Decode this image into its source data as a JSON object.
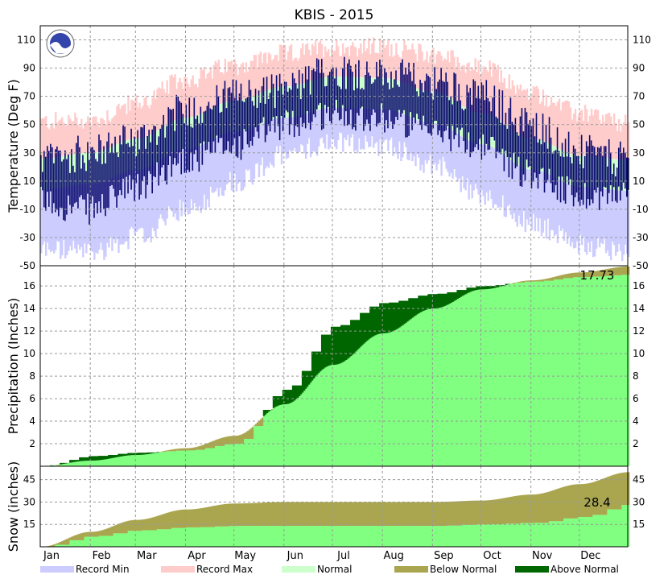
{
  "title": "KBIS - 2015",
  "months": [
    "Jan",
    "Feb",
    "Mar",
    "Apr",
    "May",
    "Jun",
    "Jul",
    "Aug",
    "Sep",
    "Oct",
    "Nov",
    "Dec"
  ],
  "legend": [
    {
      "label": "Record Min",
      "color": "#ccccff"
    },
    {
      "label": "Record Max",
      "color": "#ffcccc"
    },
    {
      "label": "Normal",
      "color": "#ccffcc"
    },
    {
      "label": "Below Normal",
      "color": "#aaa650"
    },
    {
      "label": "Above Normal",
      "color": "#006600"
    }
  ],
  "colors": {
    "record_min": "#ccccff",
    "record_max": "#ffcccc",
    "normal": "#ccffcc",
    "observed_temp": "#0a0a6e",
    "normal_precip": "#80ff80",
    "below_normal": "#aaa650",
    "above_normal": "#006600"
  },
  "chart_data": [
    {
      "type": "area",
      "panel": "temperature",
      "ylabel": "Temperature (Deg F)",
      "ylim": [
        -50,
        120
      ],
      "yticks": [
        110,
        90,
        70,
        50,
        30,
        10,
        -10,
        -30,
        -50
      ],
      "x": [
        "Jan 1",
        "Feb 1",
        "Mar 1",
        "Apr 1",
        "May 1",
        "Jun 1",
        "Jul 1",
        "Aug 1",
        "Sep 1",
        "Oct 1",
        "Nov 1",
        "Dec 1",
        "Dec 31"
      ],
      "series": [
        {
          "name": "Record Max",
          "values": [
            52,
            53,
            65,
            82,
            92,
            100,
            105,
            105,
            100,
            90,
            72,
            58,
            50
          ]
        },
        {
          "name": "Normal",
          "values": [
            26,
            30,
            40,
            55,
            67,
            77,
            84,
            83,
            73,
            58,
            40,
            28,
            25
          ]
        },
        {
          "name": "Record Min",
          "values": [
            -38,
            -40,
            -30,
            -10,
            10,
            28,
            38,
            35,
            22,
            0,
            -20,
            -35,
            -40
          ]
        },
        {
          "name": "Observed High",
          "values": [
            25,
            30,
            40,
            60,
            70,
            75,
            88,
            85,
            80,
            70,
            50,
            30,
            25
          ]
        },
        {
          "name": "Observed Low",
          "values": [
            -5,
            -10,
            5,
            25,
            35,
            50,
            58,
            55,
            45,
            35,
            15,
            0,
            0
          ]
        }
      ],
      "grid": true
    },
    {
      "type": "area",
      "panel": "precipitation",
      "ylabel": "Precipitation (Inches)",
      "ylim": [
        0,
        17.8
      ],
      "yticks": [
        16,
        14,
        12,
        10,
        8,
        6,
        4,
        2
      ],
      "x": [
        "Jan 1",
        "Feb 1",
        "Mar 1",
        "Apr 1",
        "May 1",
        "Jun 1",
        "Jul 1",
        "Aug 1",
        "Sep 1",
        "Oct 1",
        "Nov 1",
        "Dec 1",
        "Dec 31"
      ],
      "series": [
        {
          "name": "Normal",
          "values": [
            0,
            0.5,
            1.0,
            1.6,
            2.7,
            5.5,
            9.0,
            11.8,
            14.0,
            15.7,
            16.5,
            17.2,
            17.73
          ]
        },
        {
          "name": "Observed",
          "values": [
            0,
            0.9,
            1.2,
            1.4,
            2.0,
            6.8,
            12.4,
            14.5,
            15.3,
            16.0,
            16.4,
            16.8,
            17.0
          ]
        }
      ],
      "annotation": "17.73",
      "grid": true
    },
    {
      "type": "area",
      "panel": "snow",
      "ylabel": "Snow (inches)",
      "ylim": [
        0,
        54
      ],
      "yticks": [
        45,
        30,
        15
      ],
      "x": [
        "Jan 1",
        "Feb 1",
        "Mar 1",
        "Apr 1",
        "May 1",
        "Jun 1",
        "Jul 1",
        "Aug 1",
        "Sep 1",
        "Oct 1",
        "Nov 1",
        "Dec 1",
        "Dec 31"
      ],
      "series": [
        {
          "name": "Normal",
          "values": [
            0,
            10,
            18,
            25,
            29,
            30,
            30,
            30,
            30,
            31,
            35,
            42,
            50
          ]
        },
        {
          "name": "Observed",
          "values": [
            0,
            7,
            11,
            13,
            14,
            14,
            14,
            14,
            14,
            15,
            16,
            20,
            28.4
          ]
        }
      ],
      "annotation": "28.4",
      "grid": true
    }
  ]
}
